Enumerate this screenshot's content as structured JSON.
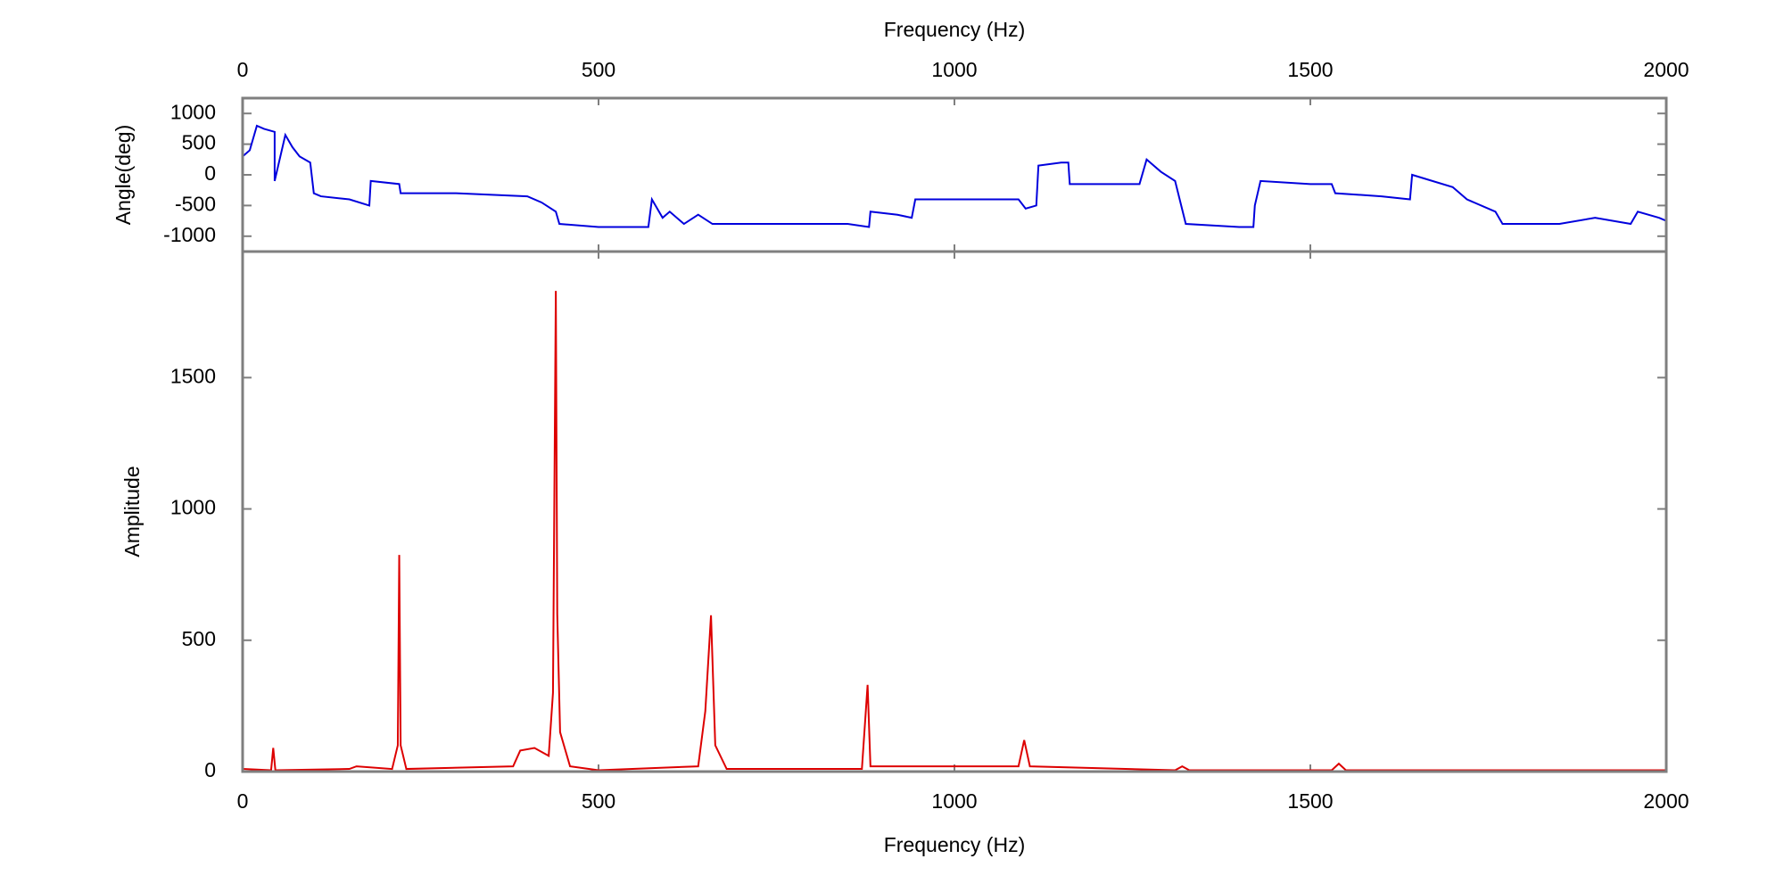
{
  "chart_data": [
    {
      "type": "line",
      "xlabel": "Frequency (Hz)",
      "ylabel": "Angle(deg)",
      "xaxis": "top",
      "xlim": [
        0,
        2000
      ],
      "xticks": [
        0,
        500,
        1000,
        1500,
        2000
      ],
      "ylim": [
        -1250,
        1250
      ],
      "yticks": [
        -1000,
        -500,
        0,
        500,
        1000
      ],
      "series": [
        {
          "name": "Angle",
          "color": "#0000dd",
          "x": [
            0,
            10,
            20,
            30,
            45,
            45,
            55,
            60,
            70,
            80,
            95,
            100,
            110,
            150,
            178,
            180,
            220,
            222,
            300,
            400,
            420,
            440,
            445,
            500,
            570,
            575,
            590,
            600,
            620,
            640,
            660,
            700,
            850,
            880,
            882,
            920,
            940,
            945,
            1050,
            1090,
            1100,
            1115,
            1118,
            1150,
            1160,
            1162,
            1260,
            1270,
            1290,
            1310,
            1325,
            1400,
            1420,
            1422,
            1430,
            1500,
            1530,
            1535,
            1600,
            1640,
            1643,
            1700,
            1720,
            1760,
            1770,
            1850,
            1900,
            1950,
            1960,
            1990,
            2000
          ],
          "values": [
            300,
            400,
            800,
            750,
            700,
            -100,
            400,
            650,
            450,
            300,
            200,
            -300,
            -350,
            -400,
            -500,
            -100,
            -150,
            -300,
            -300,
            -350,
            -450,
            -600,
            -800,
            -850,
            -850,
            -400,
            -700,
            -600,
            -800,
            -650,
            -800,
            -800,
            -800,
            -850,
            -600,
            -650,
            -700,
            -400,
            -400,
            -400,
            -550,
            -500,
            150,
            200,
            200,
            -150,
            -150,
            250,
            50,
            -100,
            -800,
            -850,
            -850,
            -500,
            -100,
            -150,
            -150,
            -300,
            -350,
            -400,
            0,
            -200,
            -400,
            -600,
            -800,
            -800,
            -700,
            -800,
            -600,
            -700,
            -750
          ]
        }
      ]
    },
    {
      "type": "line",
      "xlabel": "Frequency (Hz)",
      "ylabel": "Amplitude",
      "xaxis": "bottom",
      "xlim": [
        0,
        2000
      ],
      "xticks": [
        0,
        500,
        1000,
        1500,
        2000
      ],
      "ylim": [
        0,
        1980
      ],
      "yticks": [
        0,
        500,
        1000,
        1500
      ],
      "series": [
        {
          "name": "Amplitude",
          "color": "#dd0000",
          "x": [
            0,
            40,
            43,
            46,
            150,
            160,
            210,
            218,
            220,
            222,
            230,
            380,
            390,
            410,
            430,
            436,
            440,
            442,
            446,
            460,
            500,
            640,
            650,
            658,
            664,
            680,
            870,
            878,
            882,
            1090,
            1098,
            1106,
            1310,
            1320,
            1330,
            1530,
            1540,
            1550,
            2000
          ],
          "values": [
            10,
            5,
            90,
            5,
            10,
            20,
            10,
            100,
            825,
            100,
            10,
            20,
            80,
            90,
            60,
            300,
            1830,
            600,
            150,
            20,
            5,
            20,
            230,
            595,
            100,
            10,
            10,
            330,
            20,
            20,
            120,
            20,
            5,
            20,
            5,
            5,
            30,
            5,
            5
          ]
        }
      ]
    }
  ]
}
